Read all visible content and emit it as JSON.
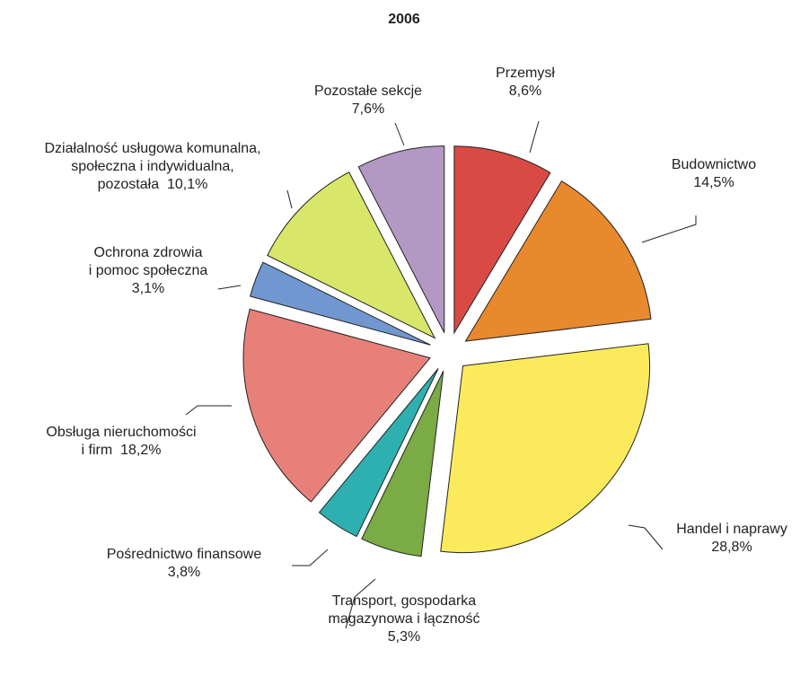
{
  "chart_data": {
    "type": "pie",
    "title": "2006",
    "categories": [
      "Przemysł",
      "Budownictwo",
      "Handel i naprawy",
      "Transport, gospodarka\nmagazynowa i łączność",
      "Pośrednictwo finansowe",
      "Obsługa nieruchomości\ni firm",
      "Ochrona zdrowia\ni pomoc społeczna",
      "Działalność usługowa komunalna,\nspołeczna i indywidualna,\npozostała",
      "Pozostałe sekcje"
    ],
    "values": [
      8.6,
      14.5,
      28.8,
      5.3,
      3.8,
      18.2,
      3.1,
      10.1,
      7.6
    ],
    "value_labels": [
      "8,6%",
      "14,5%",
      "28,8%",
      "5,3%",
      "3,8%",
      "18,2%",
      "3,1%",
      "10,1%",
      "7,6%"
    ],
    "colors": [
      "#d94a45",
      "#e8892e",
      "#fbeb5c",
      "#7aab44",
      "#2fb0b0",
      "#e8807a",
      "#7097cf",
      "#d8e66a",
      "#b398c4"
    ]
  }
}
